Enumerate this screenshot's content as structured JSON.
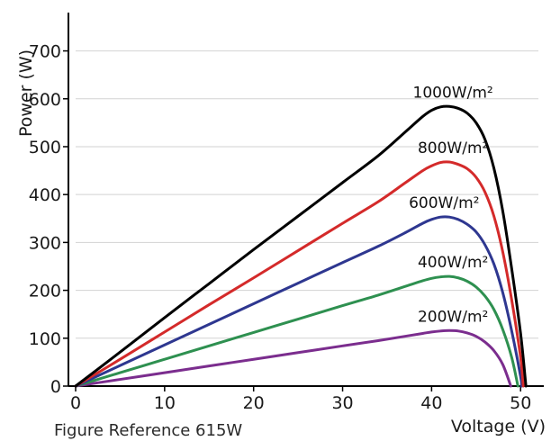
{
  "chart_data": {
    "type": "line",
    "xlabel": "Voltage (V)",
    "ylabel": "Power (W)",
    "xlim": [
      0,
      52
    ],
    "ylim": [
      0,
      780
    ],
    "x_ticks": [
      0,
      10,
      20,
      30,
      40,
      50
    ],
    "y_ticks": [
      0,
      100,
      200,
      300,
      400,
      500,
      600,
      700
    ],
    "grid": "horizontal",
    "series": [
      {
        "name": "1000W/m²",
        "color": "#000000",
        "points": [
          [
            0,
            0
          ],
          [
            5,
            71
          ],
          [
            10,
            143
          ],
          [
            15,
            214
          ],
          [
            20,
            285
          ],
          [
            25,
            355
          ],
          [
            30,
            425
          ],
          [
            34,
            481
          ],
          [
            37,
            530
          ],
          [
            39,
            563
          ],
          [
            40,
            576
          ],
          [
            41,
            583
          ],
          [
            42,
            584
          ],
          [
            43,
            580
          ],
          [
            44,
            570
          ],
          [
            45,
            550
          ],
          [
            46,
            515
          ],
          [
            47,
            455
          ],
          [
            48,
            365
          ],
          [
            49,
            245
          ],
          [
            50,
            110
          ],
          [
            50.6,
            0
          ]
        ]
      },
      {
        "name": "800W/m²",
        "color": "#d42a2a",
        "points": [
          [
            0,
            0
          ],
          [
            5,
            56
          ],
          [
            10,
            113
          ],
          [
            15,
            170
          ],
          [
            20,
            226
          ],
          [
            25,
            283
          ],
          [
            30,
            340
          ],
          [
            34,
            385
          ],
          [
            37,
            424
          ],
          [
            39,
            450
          ],
          [
            40,
            460
          ],
          [
            41,
            467
          ],
          [
            42,
            468
          ],
          [
            43,
            463
          ],
          [
            44,
            454
          ],
          [
            45,
            436
          ],
          [
            46,
            405
          ],
          [
            47,
            355
          ],
          [
            48,
            280
          ],
          [
            49,
            180
          ],
          [
            50,
            60
          ],
          [
            50.3,
            0
          ]
        ]
      },
      {
        "name": "600W/m²",
        "color": "#2e3790",
        "points": [
          [
            0,
            0
          ],
          [
            5,
            43
          ],
          [
            10,
            86
          ],
          [
            15,
            129
          ],
          [
            20,
            172
          ],
          [
            25,
            215
          ],
          [
            30,
            258
          ],
          [
            34,
            292
          ],
          [
            37,
            320
          ],
          [
            39,
            340
          ],
          [
            40,
            348
          ],
          [
            41,
            353
          ],
          [
            42,
            353
          ],
          [
            43,
            348
          ],
          [
            44,
            338
          ],
          [
            45,
            322
          ],
          [
            46,
            295
          ],
          [
            47,
            255
          ],
          [
            48,
            195
          ],
          [
            49,
            115
          ],
          [
            50,
            20
          ],
          [
            50.1,
            0
          ]
        ]
      },
      {
        "name": "400W/m²",
        "color": "#2e9050",
        "points": [
          [
            0,
            0
          ],
          [
            5,
            28
          ],
          [
            10,
            56
          ],
          [
            15,
            84
          ],
          [
            20,
            112
          ],
          [
            25,
            140
          ],
          [
            30,
            168
          ],
          [
            34,
            190
          ],
          [
            37,
            208
          ],
          [
            39,
            220
          ],
          [
            40,
            225
          ],
          [
            41,
            228
          ],
          [
            42,
            229
          ],
          [
            43,
            226
          ],
          [
            44,
            219
          ],
          [
            45,
            207
          ],
          [
            46,
            188
          ],
          [
            47,
            160
          ],
          [
            48,
            118
          ],
          [
            49,
            60
          ],
          [
            49.7,
            0
          ]
        ]
      },
      {
        "name": "200W/m²",
        "color": "#7b2d8e",
        "points": [
          [
            0,
            0
          ],
          [
            5,
            14
          ],
          [
            10,
            28
          ],
          [
            15,
            42
          ],
          [
            20,
            56
          ],
          [
            25,
            70
          ],
          [
            30,
            84
          ],
          [
            34,
            95
          ],
          [
            37,
            104
          ],
          [
            39,
            110
          ],
          [
            40,
            113
          ],
          [
            41,
            115
          ],
          [
            42,
            116
          ],
          [
            43,
            115
          ],
          [
            44,
            111
          ],
          [
            45,
            104
          ],
          [
            46,
            92
          ],
          [
            47,
            74
          ],
          [
            48,
            45
          ],
          [
            48.9,
            0
          ]
        ]
      }
    ]
  },
  "footer_note": "Figure Reference 615W"
}
